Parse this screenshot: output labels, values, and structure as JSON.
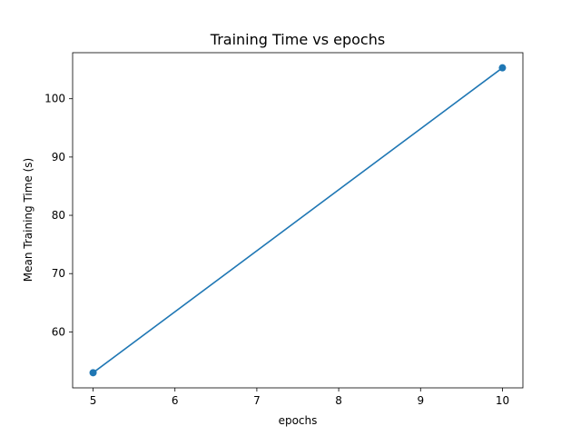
{
  "chart_data": {
    "type": "line",
    "title": "Training Time vs epochs",
    "xlabel": "epochs",
    "ylabel": "Mean Training Time (s)",
    "x": [
      5,
      10
    ],
    "series": [
      {
        "values": [
          53.0,
          105.3
        ],
        "color": "#1f77b4",
        "marker": "circle"
      }
    ],
    "xlim": [
      4.75,
      10.25
    ],
    "ylim": [
      50.4,
      107.9
    ],
    "xticks": [
      5,
      6,
      7,
      8,
      9,
      10
    ],
    "yticks": [
      60,
      70,
      80,
      90,
      100
    ],
    "grid": false
  }
}
